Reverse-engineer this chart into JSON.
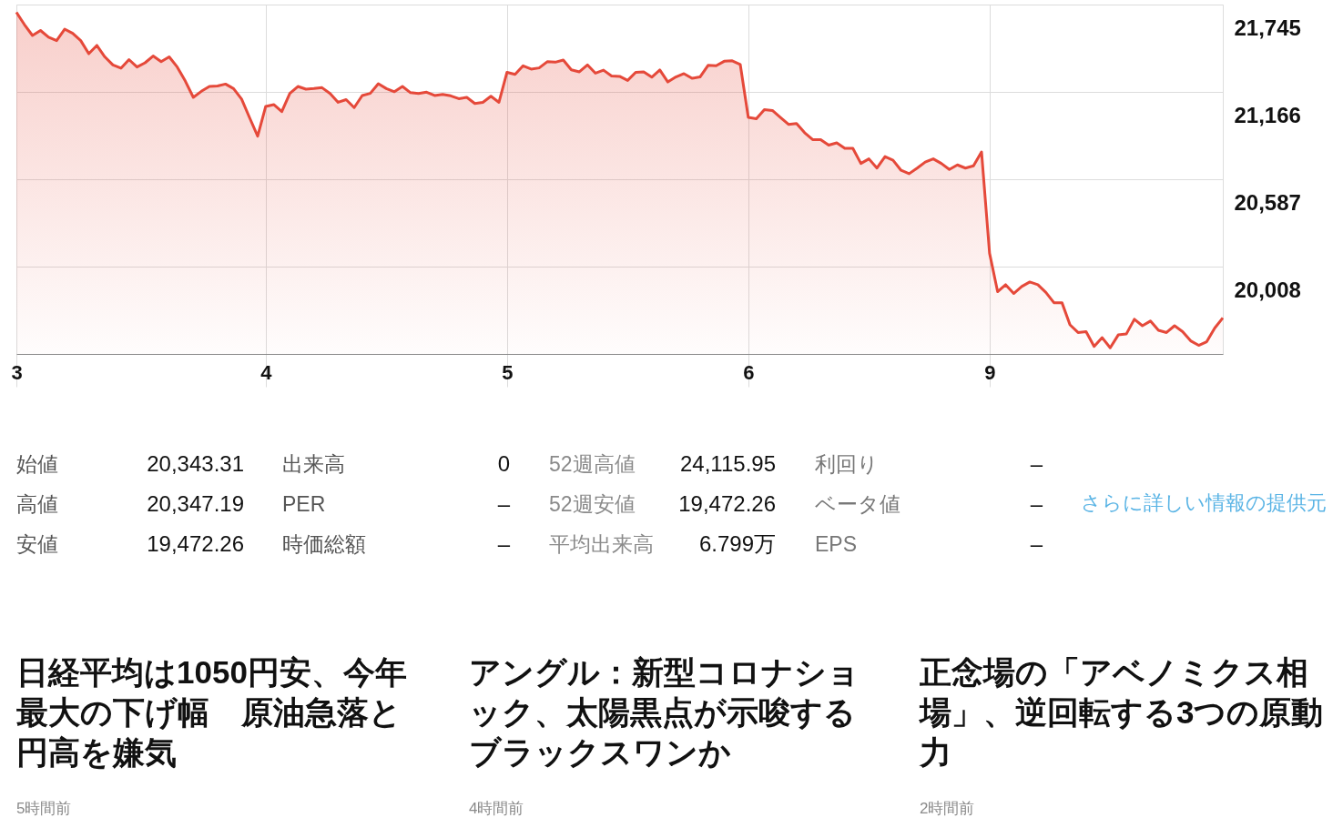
{
  "chart_data": {
    "type": "area",
    "categories": [
      "3",
      null,
      null,
      null,
      null,
      null,
      null,
      null,
      null,
      null,
      null,
      null,
      null,
      null,
      null,
      null,
      null,
      null,
      null,
      null,
      null,
      null,
      null,
      null,
      null,
      null,
      null,
      null,
      null,
      null,
      null,
      "4",
      null,
      null,
      null,
      null,
      null,
      null,
      null,
      null,
      null,
      null,
      null,
      null,
      null,
      null,
      null,
      null,
      null,
      null,
      null,
      null,
      null,
      null,
      null,
      null,
      null,
      null,
      null,
      null,
      null,
      "5",
      null,
      null,
      null,
      null,
      null,
      null,
      null,
      null,
      null,
      null,
      null,
      null,
      null,
      null,
      null,
      null,
      null,
      null,
      null,
      null,
      null,
      null,
      null,
      null,
      null,
      null,
      null,
      null,
      null,
      "6",
      null,
      null,
      null,
      null,
      null,
      null,
      null,
      null,
      null,
      null,
      null,
      null,
      null,
      null,
      null,
      null,
      null,
      null,
      null,
      null,
      null,
      null,
      null,
      null,
      null,
      null,
      null,
      null,
      null,
      "9",
      null,
      null,
      null,
      null,
      null,
      null,
      null,
      null,
      null,
      null,
      null,
      null,
      null,
      null,
      null,
      null,
      null,
      null,
      null,
      null,
      null,
      null,
      null,
      null,
      null,
      null,
      null,
      null,
      null
    ],
    "series": [
      {
        "color": "#e5493a",
        "values": [
          21694,
          21612,
          21540,
          21573,
          21528,
          21506,
          21582,
          21554,
          21506,
          21419,
          21474,
          21398,
          21345,
          21323,
          21380,
          21331,
          21359,
          21404,
          21366,
          21398,
          21331,
          21238,
          21130,
          21170,
          21202,
          21205,
          21218,
          21188,
          21118,
          20994,
          20873,
          21070,
          21082,
          21035,
          21156,
          21202,
          21184,
          21188,
          21194,
          21156,
          21097,
          21115,
          21062,
          21142,
          21156,
          21220,
          21188,
          21167,
          21202,
          21161,
          21156,
          21164,
          21142,
          21150,
          21140,
          21121,
          21130,
          21089,
          21097,
          21137,
          21097,
          21296,
          21282,
          21339,
          21317,
          21325,
          21366,
          21363,
          21377,
          21312,
          21299,
          21345,
          21290,
          21310,
          21272,
          21269,
          21242,
          21296,
          21299,
          21264,
          21311,
          21232,
          21265,
          21287,
          21256,
          21265,
          21342,
          21339,
          21369,
          21372,
          21348,
          20997,
          20988,
          21049,
          21043,
          20997,
          20951,
          20957,
          20896,
          20850,
          20850,
          20813,
          20828,
          20792,
          20792,
          20692,
          20722,
          20661,
          20737,
          20713,
          20646,
          20624,
          20661,
          20701,
          20722,
          20692,
          20652,
          20682,
          20661,
          20676,
          20768,
          20096,
          19842,
          19888,
          19830,
          19876,
          19906,
          19888,
          19837,
          19769,
          19769,
          19622,
          19571,
          19577,
          19479,
          19537,
          19470,
          19555,
          19561,
          19659,
          19616,
          19647,
          19586,
          19571,
          19616,
          19577,
          19516,
          19486,
          19510,
          19601,
          19668
        ]
      }
    ],
    "ylim": [
      19429,
      21745
    ],
    "yticks": [
      {
        "value": 20008,
        "label": "20,008"
      },
      {
        "value": 20587,
        "label": "20,587"
      },
      {
        "value": 21166,
        "label": "21,166"
      },
      {
        "value": 21745,
        "label": "21,745"
      }
    ],
    "grid": true,
    "annotations": [
      "始値",
      "20,343.31",
      "高値",
      "20,347.19",
      "安値",
      "19,472.26",
      "出来高",
      "0",
      "PER",
      "–",
      "時価総額",
      "–",
      "52週高値",
      "24,115.95",
      "52週安値",
      "19,472.26",
      "平均出来高",
      "6.799万",
      "利回り",
      "–",
      "ベータ値",
      "–",
      "EPS",
      "–",
      "さらに詳しい情報の提供元",
      "日経平均は1050円安、今年最大の下げ幅　原油急落と円高を嫌気",
      "5時間前",
      "アングル：新型コロナショック、太陽黒点が示唆するブラックスワンか",
      "4時間前",
      "正念場の「アベノミクス相場」、逆回転する3つの原動力",
      "2時間前"
    ]
  }
}
